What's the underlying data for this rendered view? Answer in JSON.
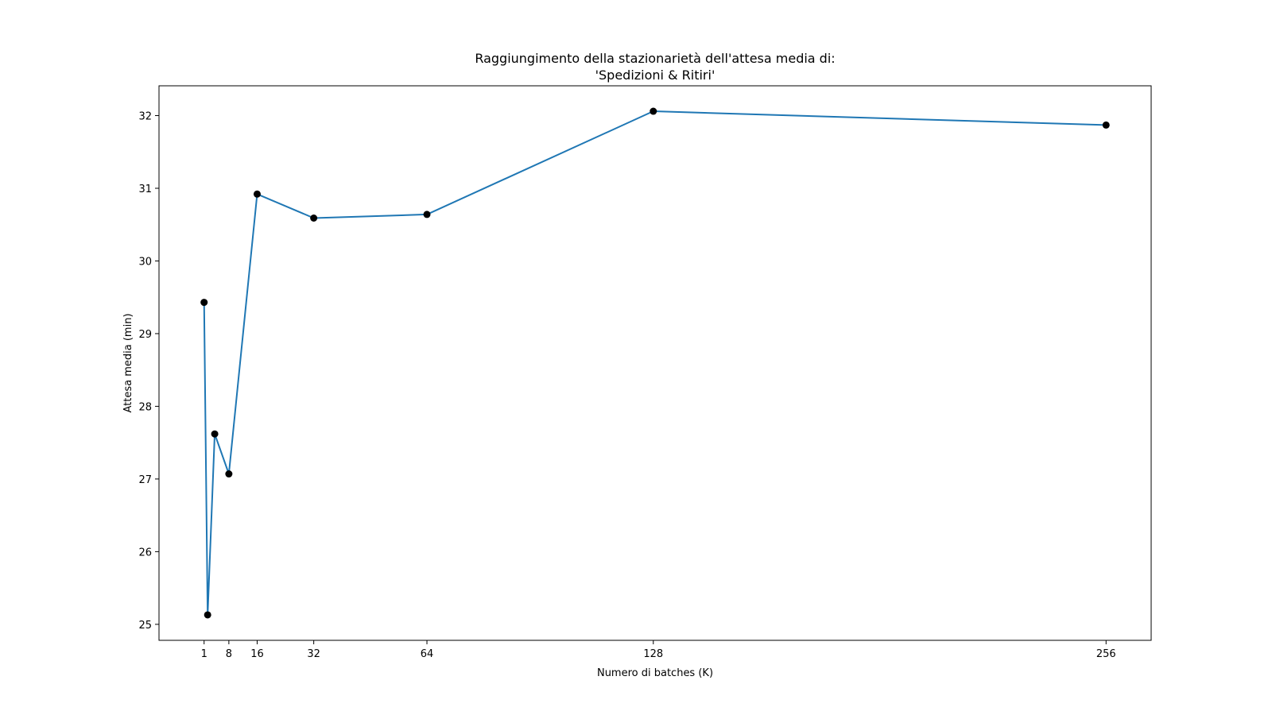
{
  "chart_data": {
    "type": "line",
    "title_lines": [
      "Raggiungimento della stazionarietà dell'attesa media di:",
      "'Spedizioni & Ritiri'"
    ],
    "xlabel": "Numero di batches (K)",
    "ylabel": "Attesa media (min)",
    "xticks": [
      1,
      8,
      16,
      32,
      64,
      128,
      256
    ],
    "yticks": [
      25,
      26,
      27,
      28,
      29,
      30,
      31,
      32
    ],
    "xlim": [
      -11.75,
      268.75
    ],
    "ylim": [
      24.78,
      32.41
    ],
    "grid": false,
    "series": [
      {
        "color": "#1f77b4",
        "marker_color": "#000000",
        "x": [
          1,
          2,
          4,
          8,
          16,
          32,
          64,
          128,
          256
        ],
        "y": [
          29.43,
          25.13,
          27.62,
          27.07,
          30.92,
          30.59,
          30.64,
          32.06,
          31.87
        ]
      }
    ]
  }
}
